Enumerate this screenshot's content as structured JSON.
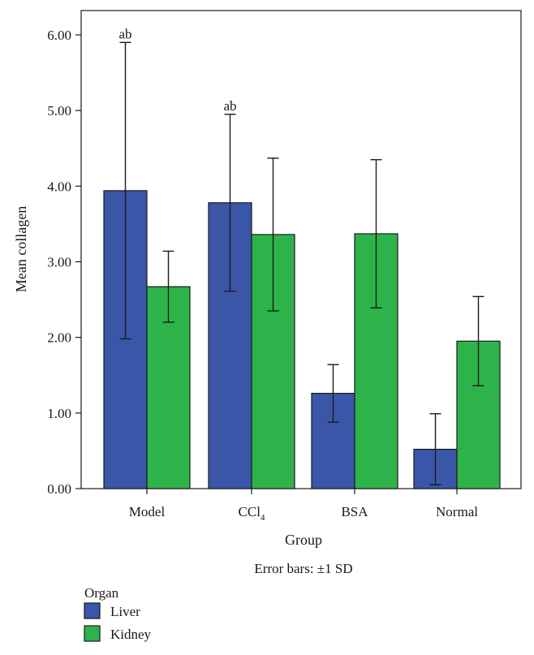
{
  "chart_data": {
    "type": "bar",
    "categories": [
      "Model",
      "CCl4",
      "BSA",
      "Normal"
    ],
    "category_labels": [
      {
        "base": "Model",
        "sub": ""
      },
      {
        "base": "CCl",
        "sub": "4"
      },
      {
        "base": "BSA",
        "sub": ""
      },
      {
        "base": "Normal",
        "sub": ""
      }
    ],
    "series": [
      {
        "name": "Liver",
        "color": "#3a56a8",
        "values": [
          3.94,
          3.78,
          1.26,
          0.52
        ],
        "error": [
          1.96,
          1.17,
          0.38,
          0.47
        ]
      },
      {
        "name": "Kidney",
        "color": "#2db34a",
        "values": [
          2.67,
          3.36,
          3.37,
          1.95
        ],
        "error": [
          0.47,
          1.01,
          0.98,
          0.59
        ]
      }
    ],
    "annotations": [
      {
        "category": "Model",
        "series": "Liver",
        "text": "ab"
      },
      {
        "category": "CCl4",
        "series": "Liver",
        "text": "ab"
      }
    ],
    "xlabel": "Group",
    "ylabel": "Mean collagen",
    "ylim": [
      0,
      6.3
    ],
    "yticks": [
      "0.00",
      "1.00",
      "2.00",
      "3.00",
      "4.00",
      "5.00",
      "6.00"
    ],
    "note": "Error bars: ±1 SD",
    "legend_title": "Organ",
    "legend_position": "bottom-left",
    "grid": false
  }
}
